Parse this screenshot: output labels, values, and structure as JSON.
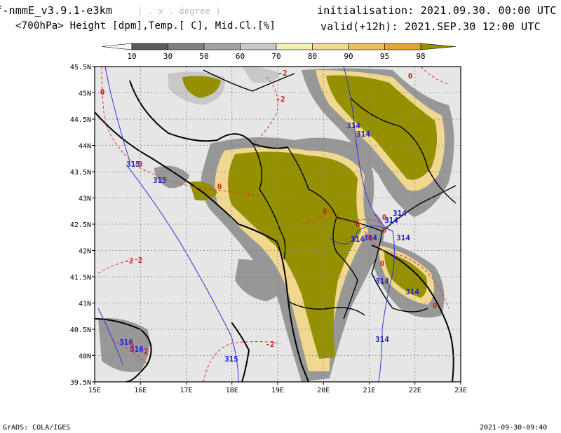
{
  "header": {
    "model": "f-nmmE_v3.9.1-e3km",
    "projection_note": "( . x . degree )",
    "variables": "<700hPa> Height [dpm],Temp.[ C], Mid.Cl.[%]",
    "initialisation": "initialisation: 2021.09.30.  00:00 UTC",
    "valid": "valid(+12h): 2021.SEP.30 12:00 UTC"
  },
  "colorbar": {
    "labels": [
      "10",
      "30",
      "50",
      "60",
      "70",
      "80",
      "90",
      "95",
      "98"
    ],
    "colors": [
      "#5a5a5a",
      "#7f7f7f",
      "#a3a3a3",
      "#c8c8c8",
      "#f2eeb4",
      "#f0d890",
      "#e8c15c",
      "#e0a632",
      "#959000"
    ]
  },
  "map": {
    "x_ticks": [
      "15E",
      "16E",
      "17E",
      "18E",
      "19E",
      "20E",
      "21E",
      "22E",
      "23E"
    ],
    "y_ticks": [
      "45.5N",
      "45N",
      "44.5N",
      "44N",
      "43.5N",
      "43N",
      "42.5N",
      "42N",
      "41.5N",
      "41N",
      "40.5N",
      "40N",
      "39.5N"
    ],
    "height_labels": [
      "315",
      "315",
      "314",
      "314",
      "314",
      "314",
      "314",
      "314",
      "314",
      "314",
      "314",
      "315",
      "316",
      "316",
      "314"
    ],
    "temp_labels": [
      "-2",
      "-2",
      "0",
      "0",
      "0",
      "0",
      "0",
      "0",
      "0",
      "0",
      "0",
      "-2",
      "-2",
      "-2",
      "0",
      "0",
      "2",
      "2"
    ],
    "background_color": "#e6e6e6",
    "height_contour_color": "#3333dd",
    "temp_contour_color": "#e03030",
    "coast_color": "#000000"
  },
  "footer": {
    "left": "GrADS: COLA/IGES",
    "right": "2021-09-30-09:40"
  }
}
